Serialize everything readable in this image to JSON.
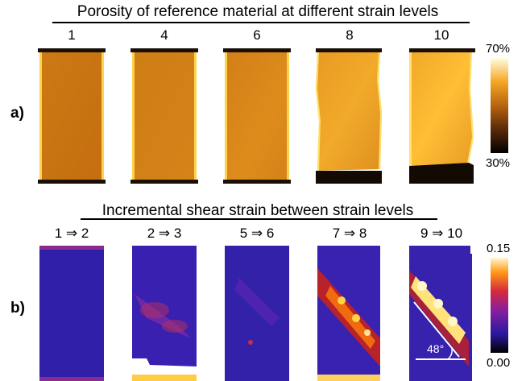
{
  "row_a": {
    "title": "Porosity of reference material at different strain levels",
    "label": "a)",
    "columns": [
      "1",
      "4",
      "6",
      "8",
      "10"
    ],
    "colorbar": {
      "max": "70%",
      "min": "30%"
    }
  },
  "row_b": {
    "title": "Incremental shear strain between strain levels",
    "label": "b)",
    "columns": [
      "1 ⇒ 2",
      "2 ⇒ 3",
      "5 ⇒ 6",
      "7 ⇒ 8",
      "9 ⇒ 10"
    ],
    "colorbar": {
      "max": "0.15",
      "min": "0.00"
    },
    "angle_annotation": "48°"
  }
}
